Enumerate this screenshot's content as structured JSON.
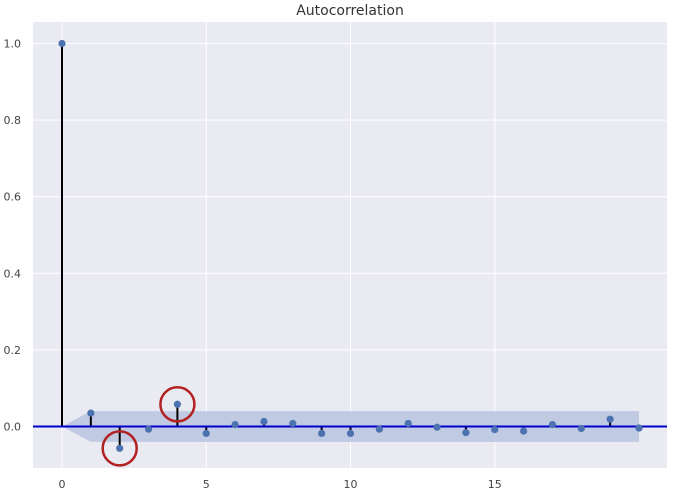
{
  "chart_data": {
    "type": "stem",
    "title": "Autocorrelation",
    "xlabel": "",
    "ylabel": "",
    "x": [
      0,
      1,
      2,
      3,
      4,
      5,
      6,
      7,
      8,
      9,
      10,
      11,
      12,
      13,
      14,
      15,
      16,
      17,
      18,
      19,
      20
    ],
    "values": [
      1.0,
      0.035,
      -0.057,
      -0.007,
      0.058,
      -0.018,
      0.005,
      0.013,
      0.008,
      -0.018,
      -0.018,
      -0.007,
      0.008,
      -0.002,
      -0.016,
      -0.008,
      -0.012,
      0.005,
      -0.005,
      0.019,
      -0.004
    ],
    "confidence_band": {
      "lower": [
        0.0,
        -0.04,
        -0.04,
        -0.04,
        -0.04,
        -0.04,
        -0.04,
        -0.04,
        -0.04,
        -0.04,
        -0.04,
        -0.04,
        -0.04,
        -0.04,
        -0.04,
        -0.04,
        -0.04,
        -0.04,
        -0.04,
        -0.04,
        -0.04
      ],
      "upper": [
        0.0,
        0.04,
        0.04,
        0.04,
        0.04,
        0.04,
        0.04,
        0.04,
        0.04,
        0.04,
        0.04,
        0.04,
        0.04,
        0.04,
        0.04,
        0.04,
        0.04,
        0.04,
        0.04,
        0.04,
        0.04
      ],
      "color": "#b8c4e0"
    },
    "highlighted_lags": [
      2,
      4
    ],
    "xlim": [
      -1,
      21
    ],
    "ylim": [
      -0.1,
      1.05
    ],
    "xticks": [
      0,
      5,
      10,
      15
    ],
    "xtick_labels": [
      "0",
      "5",
      "10",
      "15"
    ],
    "yticks": [
      0.0,
      0.2,
      0.4,
      0.6,
      0.8,
      1.0
    ],
    "ytick_labels": [
      "0.0",
      "0.2",
      "0.4",
      "0.6",
      "0.8",
      "1.0"
    ],
    "grid": true,
    "colors": {
      "background": "#eaeaf2",
      "grid": "#ffffff",
      "stem": "#000000",
      "marker": "#4c72b0",
      "zero_line": "#0000cc",
      "highlight_circle": "#b22222"
    }
  }
}
